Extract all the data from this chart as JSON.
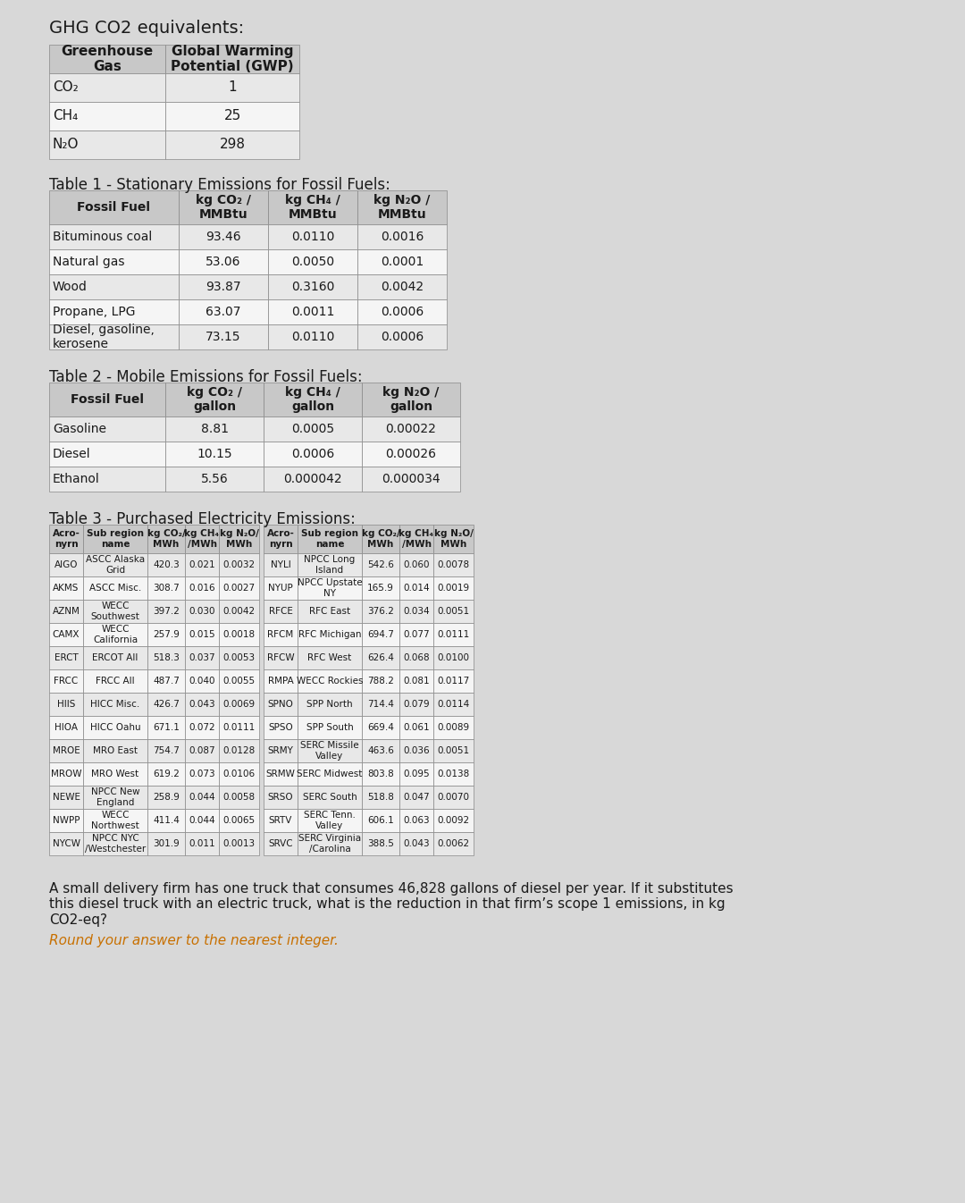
{
  "title": "GHG CO2 equivalents:",
  "bg_color": "#d8d8d8",
  "table0_title": "",
  "table0_headers": [
    "Greenhouse\nGas",
    "Global Warming\nPotential (GWP)"
  ],
  "table0_rows": [
    [
      "CO₂",
      "1"
    ],
    [
      "CH₄",
      "25"
    ],
    [
      "N₂O",
      "298"
    ]
  ],
  "table1_title": "Table 1 - Stationary Emissions for Fossil Fuels:",
  "table1_headers": [
    "Fossil Fuel",
    "kg CO₂ /\nMMBtu",
    "kg CH₄ /\nMMBtu",
    "kg N₂O /\nMMBtu"
  ],
  "table1_rows": [
    [
      "Bituminous coal",
      "93.46",
      "0.0110",
      "0.0016"
    ],
    [
      "Natural gas",
      "53.06",
      "0.0050",
      "0.0001"
    ],
    [
      "Wood",
      "93.87",
      "0.3160",
      "0.0042"
    ],
    [
      "Propane, LPG",
      "63.07",
      "0.0011",
      "0.0006"
    ],
    [
      "Diesel, gasoline,\nkerosene",
      "73.15",
      "0.0110",
      "0.0006"
    ]
  ],
  "table2_title": "Table 2 - Mobile Emissions for Fossil Fuels:",
  "table2_headers": [
    "Fossil Fuel",
    "kg CO₂ /\ngallon",
    "kg CH₄ /\ngallon",
    "kg N₂O /\ngallon"
  ],
  "table2_rows": [
    [
      "Gasoline",
      "8.81",
      "0.0005",
      "0.00022"
    ],
    [
      "Diesel",
      "10.15",
      "0.0006",
      "0.00026"
    ],
    [
      "Ethanol",
      "5.56",
      "0.000042",
      "0.000034"
    ]
  ],
  "table3_title": "Table 3 - Purchased Electricity Emissions:",
  "table3_left_headers": [
    "Acro-\nnyrn",
    "Sub region\nname",
    "kg CO₂/\nMWh",
    "kg CH₄\n/MWh",
    "kg N₂O/\nMWh"
  ],
  "table3_left_rows": [
    [
      "AIGO",
      "ASCC Alaska\nGrid",
      "420.3",
      "0.021",
      "0.0032"
    ],
    [
      "AKMS",
      "ASCC Misc.",
      "308.7",
      "0.016",
      "0.0027"
    ],
    [
      "AZNM",
      "WECC\nSouthwest",
      "397.2",
      "0.030",
      "0.0042"
    ],
    [
      "CAMX",
      "WECC\nCalifornia",
      "257.9",
      "0.015",
      "0.0018"
    ],
    [
      "ERCT",
      "ERCOT All",
      "518.3",
      "0.037",
      "0.0053"
    ],
    [
      "FRCC",
      "FRCC All",
      "487.7",
      "0.040",
      "0.0055"
    ],
    [
      "HIIS",
      "HICC Misc.",
      "426.7",
      "0.043",
      "0.0069"
    ],
    [
      "HIOA",
      "HICC Oahu",
      "671.1",
      "0.072",
      "0.0111"
    ],
    [
      "MROE",
      "MRO East",
      "754.7",
      "0.087",
      "0.0128"
    ],
    [
      "MROW",
      "MRO West",
      "619.2",
      "0.073",
      "0.0106"
    ],
    [
      "NEWE",
      "NPCC New\nEngland",
      "258.9",
      "0.044",
      "0.0058"
    ],
    [
      "NWPP",
      "WECC\nNorthwest",
      "411.4",
      "0.044",
      "0.0065"
    ],
    [
      "NYCW",
      "NPCC NYC\n/Westchester",
      "301.9",
      "0.011",
      "0.0013"
    ]
  ],
  "table3_right_headers": [
    "Acro-\nnyrn",
    "Sub region\nname",
    "kg CO₂/\nMWh",
    "kg CH₄\n/MWh",
    "kg N₂O/\nMWh"
  ],
  "table3_right_rows": [
    [
      "NYLI",
      "NPCC Long\nIsland",
      "542.6",
      "0.060",
      "0.0078"
    ],
    [
      "NYUP",
      "NPCC Upstate\nNY",
      "165.9",
      "0.014",
      "0.0019"
    ],
    [
      "RFCE",
      "RFC East",
      "376.2",
      "0.034",
      "0.0051"
    ],
    [
      "RFCM",
      "RFC Michigan",
      "694.7",
      "0.077",
      "0.0111"
    ],
    [
      "RFCW",
      "RFC West",
      "626.4",
      "0.068",
      "0.0100"
    ],
    [
      "RMPA",
      "WECC Rockies",
      "788.2",
      "0.081",
      "0.0117"
    ],
    [
      "SPNO",
      "SPP North",
      "714.4",
      "0.079",
      "0.0114"
    ],
    [
      "SPSO",
      "SPP South",
      "669.4",
      "0.061",
      "0.0089"
    ],
    [
      "SRMY",
      "SERC Missile\nValley",
      "463.6",
      "0.036",
      "0.0051"
    ],
    [
      "SRMW",
      "SERC Midwest",
      "803.8",
      "0.095",
      "0.0138"
    ],
    [
      "SRSO",
      "SERC South",
      "518.8",
      "0.047",
      "0.0070"
    ],
    [
      "SRTV",
      "SERC Tenn.\nValley",
      "606.1",
      "0.063",
      "0.0092"
    ],
    [
      "SRVC",
      "SERC Virginia\n/Carolina",
      "388.5",
      "0.043",
      "0.0062"
    ]
  ],
  "footer_text": "A small delivery firm has one truck that consumes 46,828 gallons of diesel per year. If it substitutes\nthis diesel truck with an electric truck, what is the reduction in that firm’s scope 1 emissions, in kg\nCO2-eq?",
  "footer_note": "Round your answer to the nearest integer.",
  "header_color": "#c8c8c8",
  "alt_row_color": "#e8e8e8",
  "white_row_color": "#f5f5f5",
  "border_color": "#888888",
  "text_color": "#1a1a1a"
}
